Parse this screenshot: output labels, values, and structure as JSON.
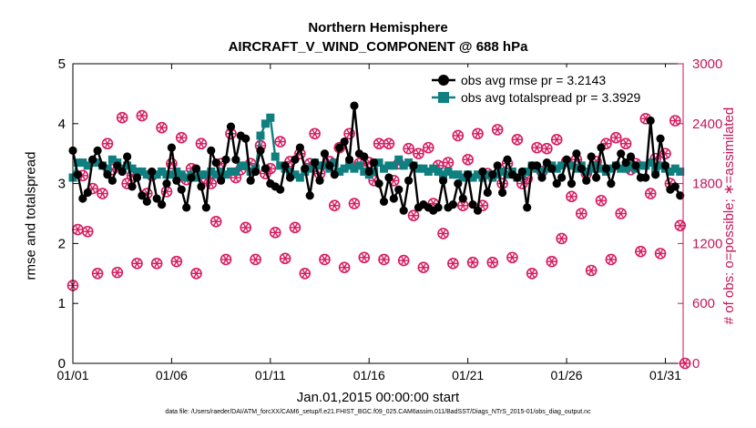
{
  "chart_data": {
    "type": "line",
    "title": "Northern Hemisphere",
    "subtitle": "AIRCRAFT_V_WIND_COMPONENT @ 688 hPa",
    "xlabel": "Jan.01,2015 00:00:00 start",
    "ylabel_left": "rmse and totalspread",
    "ylabel_right": "# of obs: o=possible; ∗=assimilated",
    "footer": "data file: /Users/raeder/DAI/ATM_forcXX/CAM6_setup/f.e21.FHIST_BGC.f09_025.CAM6assim.011/BadSST/Diags_NTrS_2015-01/obs_diag_output.nc",
    "x_ticks": [
      {
        "label": "01/01",
        "day": 0
      },
      {
        "label": "01/06",
        "day": 5
      },
      {
        "label": "01/11",
        "day": 10
      },
      {
        "label": "01/16",
        "day": 15
      },
      {
        "label": "01/21",
        "day": 20
      },
      {
        "label": "01/26",
        "day": 25
      },
      {
        "label": "01/31",
        "day": 30
      }
    ],
    "xlim_days": [
      0,
      30.9
    ],
    "ylim_left": [
      0,
      5
    ],
    "yticks_left": [
      "0",
      "1",
      "2",
      "3",
      "4",
      "5"
    ],
    "ylim_right": [
      0,
      3000
    ],
    "yticks_right": [
      "0",
      "600",
      "1200",
      "1800",
      "2400",
      "3000"
    ],
    "time_step_days": 0.25,
    "legend_position": "top-right",
    "colors": {
      "rmse": "#000000",
      "spread": "#0f7f7f",
      "counts": "#d81b60"
    },
    "series": [
      {
        "name": "obs avg rmse pr = 3.2143",
        "axis": "left",
        "values": [
          3.55,
          3.15,
          2.75,
          2.85,
          3.4,
          3.55,
          3.3,
          3.15,
          3.05,
          3.3,
          3.2,
          3.45,
          2.95,
          3.1,
          2.8,
          2.7,
          3.2,
          2.75,
          2.65,
          3.0,
          3.6,
          3.05,
          2.9,
          2.6,
          3.1,
          3.25,
          2.95,
          2.6,
          3.55,
          3.35,
          3.05,
          3.4,
          3.95,
          3.4,
          3.8,
          3.75,
          3.05,
          3.2,
          3.55,
          3.25,
          3.0,
          2.95,
          2.9,
          3.3,
          3.1,
          3.4,
          3.6,
          3.25,
          2.8,
          3.35,
          3.05,
          3.5,
          3.3,
          3.15,
          3.6,
          3.7,
          3.4,
          4.3,
          3.5,
          3.45,
          3.2,
          3.35,
          3.0,
          2.7,
          3.1,
          2.75,
          2.9,
          2.55,
          3.05,
          3.3,
          2.6,
          2.65,
          2.6,
          2.55,
          2.6,
          3.05,
          2.6,
          2.65,
          3.0,
          2.75,
          3.15,
          2.65,
          2.55,
          3.2,
          2.85,
          3.15,
          3.3,
          2.85,
          3.4,
          3.15,
          3.1,
          3.2,
          2.6,
          3.3,
          3.3,
          3.1,
          3.35,
          3.25,
          3.0,
          3.1,
          3.4,
          3.0,
          3.5,
          3.25,
          3.05,
          3.45,
          3.1,
          3.6,
          3.25,
          3.0,
          3.3,
          3.5,
          3.35,
          3.45,
          3.3,
          3.1,
          3.1,
          4.05,
          3.15,
          3.75,
          3.3,
          2.9,
          2.95,
          2.8
        ]
      },
      {
        "name": "obs avg totalspread pr = 3.3929",
        "axis": "left",
        "values": [
          3.1,
          3.35,
          3.35,
          3.3,
          3.35,
          3.35,
          3.3,
          3.25,
          3.4,
          3.35,
          3.25,
          3.3,
          3.25,
          3.2,
          3.2,
          3.15,
          3.15,
          3.15,
          3.2,
          3.15,
          3.15,
          3.2,
          3.15,
          3.1,
          3.15,
          3.1,
          3.15,
          3.15,
          3.2,
          3.15,
          3.2,
          3.15,
          3.2,
          3.2,
          3.3,
          3.3,
          3.2,
          3.25,
          3.8,
          4.0,
          4.1,
          3.45,
          3.3,
          3.25,
          3.2,
          3.15,
          3.1,
          3.2,
          3.25,
          3.35,
          3.3,
          3.3,
          3.25,
          3.35,
          3.2,
          3.25,
          3.3,
          3.25,
          3.3,
          3.2,
          3.15,
          3.2,
          3.35,
          3.25,
          3.3,
          3.3,
          3.4,
          3.3,
          3.35,
          3.3,
          3.25,
          3.25,
          3.2,
          3.25,
          3.2,
          3.15,
          3.2,
          3.15,
          3.15,
          3.1,
          3.15,
          3.1,
          3.15,
          3.1,
          3.15,
          3.1,
          3.15,
          3.2,
          3.15,
          3.2,
          3.1,
          3.15,
          3.2,
          3.3,
          3.25,
          3.2,
          3.25,
          3.3,
          3.25,
          3.3,
          3.35,
          3.3,
          3.25,
          3.3,
          3.2,
          3.25,
          3.3,
          3.25,
          3.2,
          3.25,
          3.3,
          3.25,
          3.25,
          3.3,
          3.25,
          3.3,
          3.3,
          3.35,
          3.25,
          3.3,
          3.25,
          3.2,
          3.25,
          3.2
        ]
      },
      {
        "name": "possible",
        "axis": "right",
        "marker": "o",
        "values": [
          780,
          1340,
          1880,
          1320,
          1750,
          900,
          1700,
          2200,
          1940,
          910,
          2460,
          1800,
          1880,
          1000,
          2480,
          1700,
          1880,
          1000,
          2360,
          1720,
          2000,
          1020,
          2260,
          1840,
          1950,
          900,
          2200,
          1850,
          1800,
          1420,
          2000,
          1040,
          2300,
          1860,
          1940,
          1360,
          2000,
          1040,
          2180,
          1900,
          1950,
          1310,
          2220,
          1050,
          2020,
          1360,
          2100,
          900,
          2000,
          2300,
          1900,
          1040,
          2020,
          1580,
          2160,
          960,
          2300,
          1600,
          2000,
          1060,
          2010,
          1830,
          2200,
          1040,
          2200,
          1830,
          2000,
          1030,
          2150,
          1480,
          2100,
          960,
          2160,
          1600,
          1980,
          1300,
          2010,
          1000,
          2280,
          1580,
          2040,
          1010,
          2300,
          1580,
          1900,
          1010,
          2340,
          1800,
          2000,
          1060,
          2240,
          1800,
          1850,
          900,
          2160,
          1920,
          2150,
          1020,
          2240,
          1250,
          2020,
          1670,
          2040,
          1500,
          1900,
          930,
          2020,
          1630,
          2200,
          1040,
          2260,
          1500,
          2200,
          1940,
          2000,
          1120,
          2450,
          1700,
          2050,
          1100,
          2100,
          1800,
          2430,
          1380,
          0
        ]
      },
      {
        "name": "assimilated",
        "axis": "right",
        "marker": "*",
        "values": [
          780,
          1340,
          1880,
          1320,
          1750,
          900,
          1700,
          2200,
          1940,
          910,
          2460,
          1800,
          1880,
          1000,
          2480,
          1700,
          1880,
          1000,
          2360,
          1720,
          2000,
          1020,
          2260,
          1840,
          1950,
          900,
          2200,
          1850,
          1800,
          1420,
          2000,
          1040,
          2300,
          1860,
          1940,
          1360,
          2000,
          1040,
          2180,
          1900,
          1950,
          1310,
          2220,
          1050,
          2020,
          1360,
          2100,
          900,
          2000,
          2300,
          1900,
          1040,
          2020,
          1580,
          2160,
          960,
          2300,
          1600,
          2000,
          1060,
          2010,
          1830,
          2200,
          1040,
          2200,
          1830,
          2000,
          1030,
          2150,
          1480,
          2100,
          960,
          2160,
          1600,
          1980,
          1300,
          2010,
          1000,
          2280,
          1580,
          2040,
          1010,
          2300,
          1580,
          1900,
          1010,
          2340,
          1800,
          2000,
          1060,
          2240,
          1800,
          1850,
          900,
          2160,
          1920,
          2150,
          1020,
          2240,
          1250,
          2020,
          1670,
          2040,
          1500,
          1900,
          930,
          2020,
          1630,
          2200,
          1040,
          2260,
          1500,
          2200,
          1940,
          2000,
          1120,
          2450,
          1700,
          2050,
          1100,
          2100,
          1800,
          2430,
          1380,
          0
        ]
      }
    ],
    "grid": false
  }
}
